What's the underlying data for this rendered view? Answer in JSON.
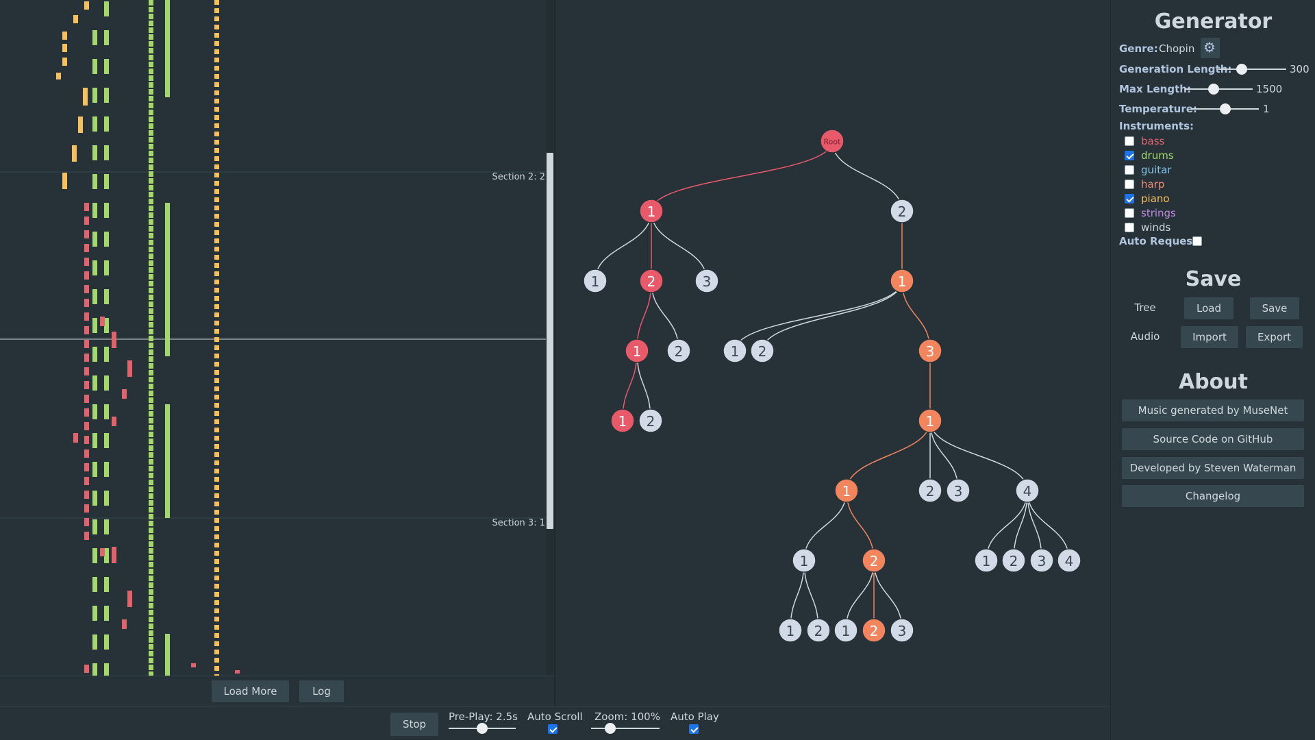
{
  "piano_roll": {
    "sections": [
      {
        "label": "Section 2: 2"
      },
      {
        "label": "Section 3: 1"
      }
    ],
    "track_colors": {
      "piano": "#f5c15c",
      "drums": "#a5d86c",
      "bass": "#e0636e"
    },
    "footer": {
      "load_more_label": "Load More",
      "log_label": "Log"
    }
  },
  "tree": {
    "colors": {
      "root": "#e85a6a",
      "selected_path": "#e85a6a",
      "playing_path": "#f2855e",
      "default": "#d2dae8",
      "edge_default": "#cfd8dc"
    },
    "root_label": "Root"
  },
  "transport": {
    "stop_label": "Stop",
    "preplay_label": "Pre-Play: 2.5s",
    "preplay_fraction": 0.5,
    "auto_scroll_label": "Auto Scroll",
    "auto_scroll_checked": true,
    "zoom_label": "Zoom: 100%",
    "zoom_fraction": 0.28,
    "auto_play_label": "Auto Play",
    "auto_play_checked": true
  },
  "generator": {
    "title": "Generator",
    "genre_label": "Genre:",
    "genre_value": "Chopin",
    "gen_length_label": "Generation Length:",
    "gen_length_value": "300",
    "gen_length_fraction": 0.34,
    "max_length_label": "Max Length:",
    "max_length_value": "1500",
    "max_length_fraction": 0.42,
    "temperature_label": "Temperature:",
    "temperature_value": "1",
    "temperature_fraction": 0.5,
    "instruments_label": "Instruments:",
    "instruments": [
      {
        "name": "bass",
        "color": "#e0636e",
        "checked": false
      },
      {
        "name": "drums",
        "color": "#a5d86c",
        "checked": true
      },
      {
        "name": "guitar",
        "color": "#7ec3e6",
        "checked": false
      },
      {
        "name": "harp",
        "color": "#f08a78",
        "checked": false
      },
      {
        "name": "piano",
        "color": "#f5c15c",
        "checked": true
      },
      {
        "name": "strings",
        "color": "#c08ae0",
        "checked": false
      },
      {
        "name": "winds",
        "color": "#cfd8dc",
        "checked": false
      }
    ],
    "auto_request_label": "Auto Request",
    "auto_request_checked": false
  },
  "save": {
    "title": "Save",
    "tree_label": "Tree",
    "tree_load": "Load",
    "tree_save": "Save",
    "audio_label": "Audio",
    "audio_import": "Import",
    "audio_export": "Export"
  },
  "about": {
    "title": "About",
    "links": [
      "Music generated by MuseNet",
      "Source Code on GitHub",
      "Developed by Steven Waterman",
      "Changelog"
    ]
  }
}
